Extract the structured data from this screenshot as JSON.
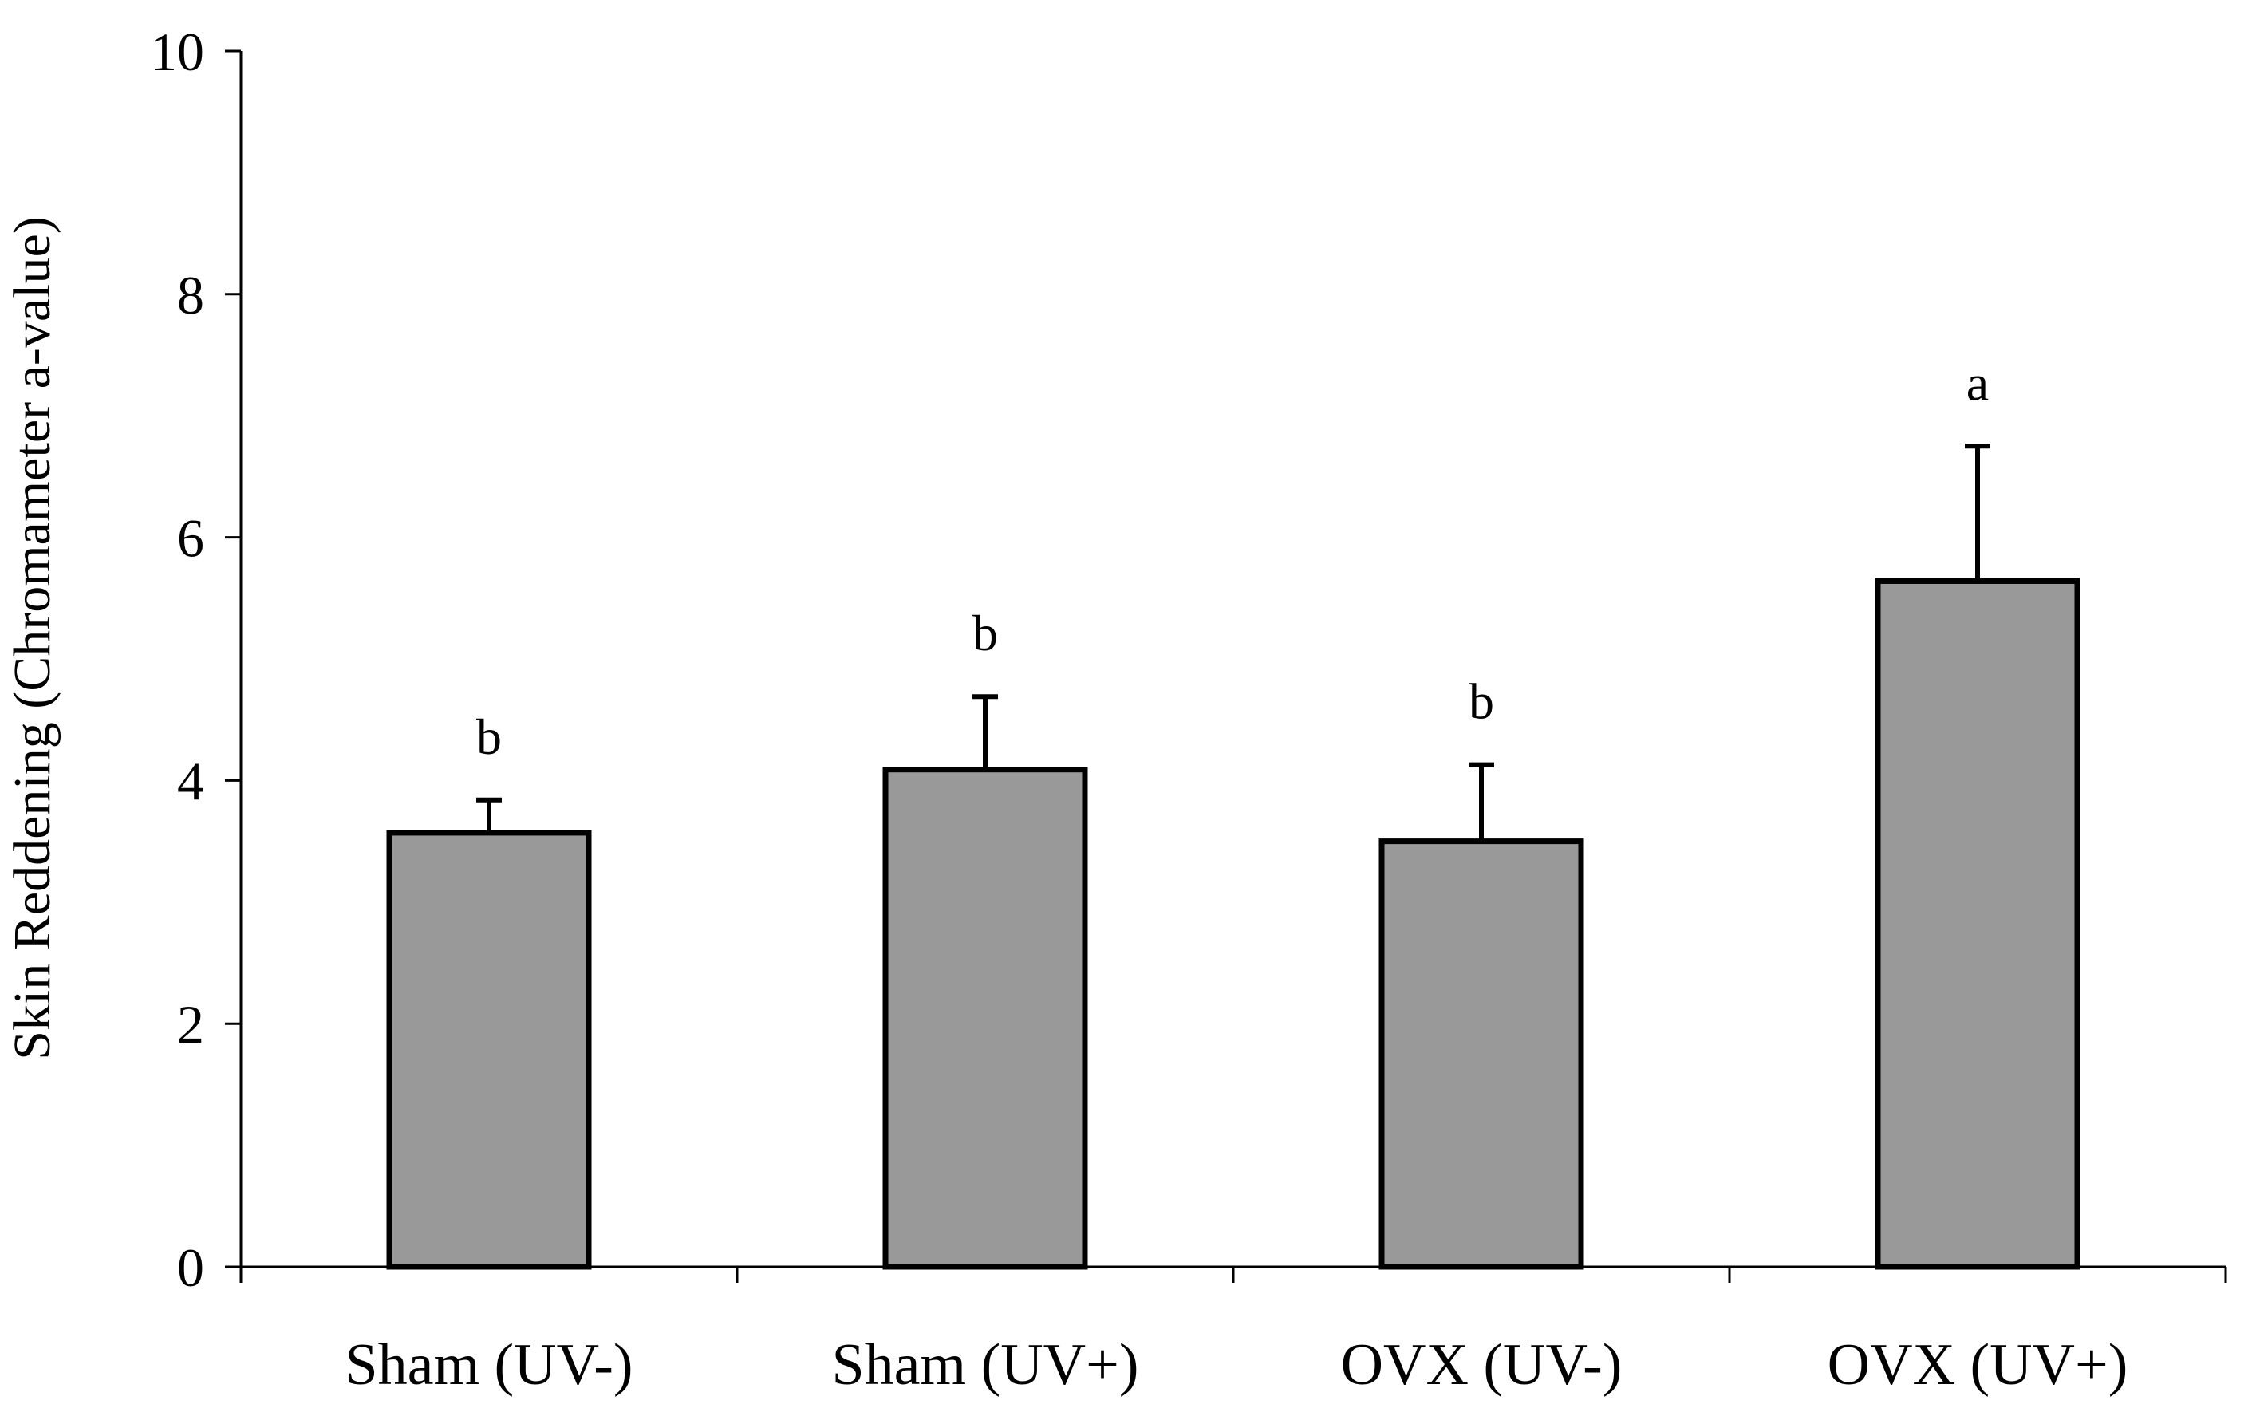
{
  "chart_data": {
    "type": "bar",
    "title": "",
    "xlabel": "",
    "ylabel": "Skin Reddening (Chromameter a-value)",
    "ylim": [
      0,
      10
    ],
    "yticks": [
      0,
      2,
      4,
      6,
      8,
      10
    ],
    "grid": false,
    "categories": [
      "Sham (UV-)",
      "Sham (UV+)",
      "OVX (UV-)",
      "OVX (UV+)"
    ],
    "values": [
      3.57,
      4.09,
      3.5,
      5.64
    ],
    "errors": [
      0.27,
      0.6,
      0.63,
      1.11
    ],
    "significance": [
      "b",
      "b",
      "b",
      "a"
    ],
    "colors": {
      "bar_fill": "#999999",
      "bar_stroke": "#000000",
      "axis": "#000000"
    }
  }
}
